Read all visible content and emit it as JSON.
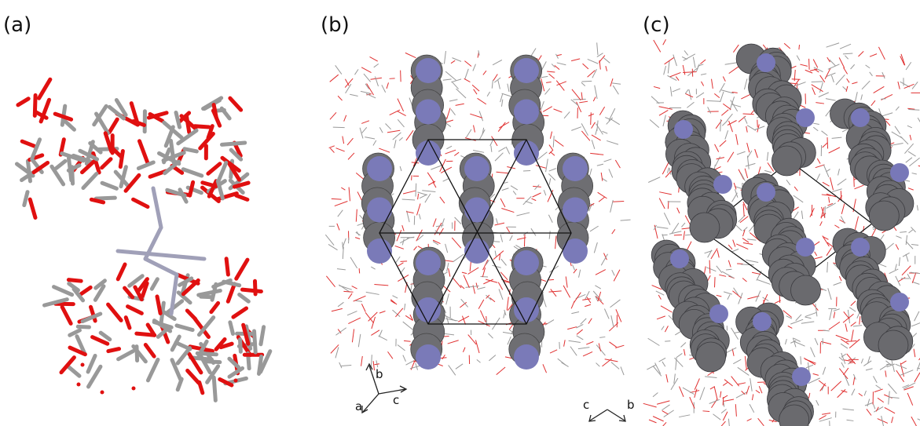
{
  "panels": [
    {
      "label": "(a)"
    },
    {
      "label": "(b)",
      "axes": [
        "b",
        "a",
        "c"
      ]
    },
    {
      "label": "(c)",
      "axes": [
        "c",
        "b"
      ]
    }
  ]
}
